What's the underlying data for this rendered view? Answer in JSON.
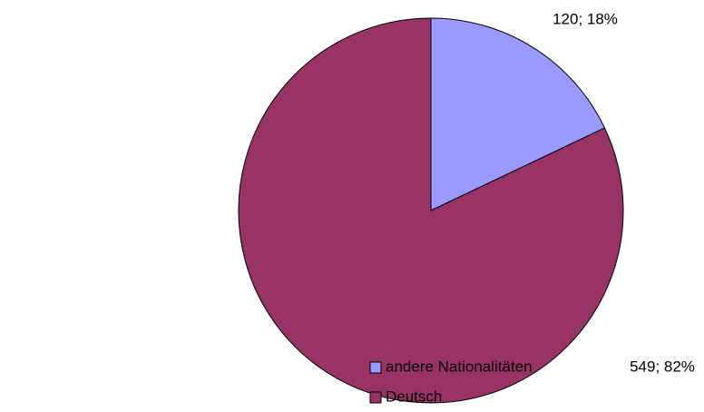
{
  "chart_data": {
    "type": "pie",
    "categories": [
      "andere Nationalitäten",
      "Deutsch"
    ],
    "values": [
      120,
      549
    ],
    "value_labels": [
      "120; 18%",
      "549; 82%"
    ],
    "colors": [
      "#9999ff",
      "#993366"
    ]
  }
}
